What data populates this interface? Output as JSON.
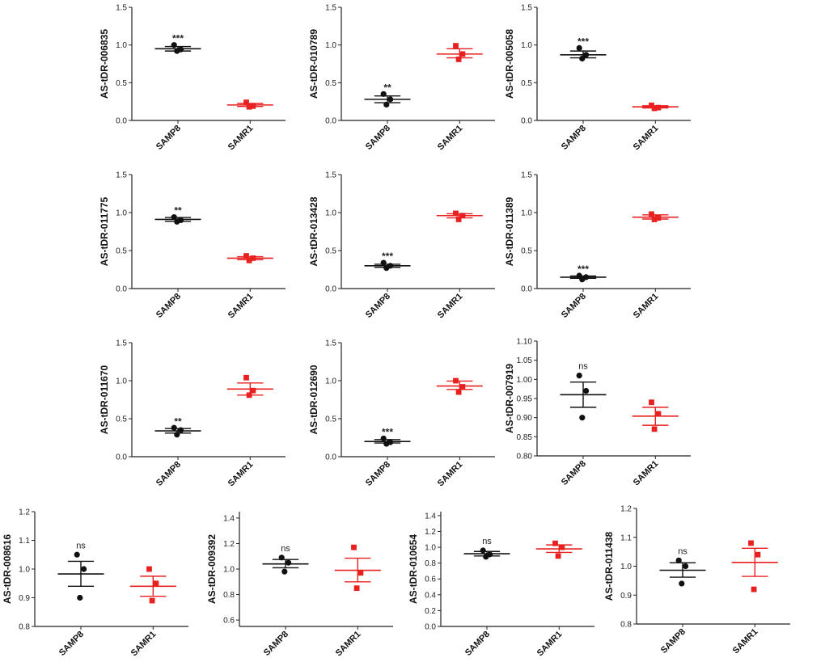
{
  "colors": {
    "SAMP8": "#111111",
    "SAMR1": "#e82020",
    "axis": "#222222"
  },
  "chart_data": [
    {
      "type": "scatter",
      "ylabel": "AS-tDR-006835",
      "categories": [
        "SAMP8",
        "SAMR1"
      ],
      "ylim": [
        0,
        1.5
      ],
      "yticks": [
        "0.0",
        "0.5",
        "1.0",
        "1.5"
      ],
      "significance": "***",
      "series": [
        {
          "name": "SAMP8",
          "points": [
            1.0,
            0.94,
            0.92
          ],
          "mean": 0.95,
          "sem_low": 0.92,
          "sem_high": 0.98
        },
        {
          "name": "SAMR1",
          "points": [
            0.24,
            0.19,
            0.18
          ],
          "mean": 0.205,
          "sem_low": 0.185,
          "sem_high": 0.225
        }
      ]
    },
    {
      "type": "scatter",
      "ylabel": "AS-tDR-010789",
      "categories": [
        "SAMP8",
        "SAMR1"
      ],
      "ylim": [
        0,
        1.5
      ],
      "yticks": [
        "0.0",
        "0.5",
        "1.0",
        "1.5"
      ],
      "significance": "**",
      "series": [
        {
          "name": "SAMP8",
          "points": [
            0.35,
            0.28,
            0.21
          ],
          "mean": 0.28,
          "sem_low": 0.235,
          "sem_high": 0.325
        },
        {
          "name": "SAMR1",
          "points": [
            0.99,
            0.88,
            0.81
          ],
          "mean": 0.88,
          "sem_low": 0.83,
          "sem_high": 0.95
        }
      ]
    },
    {
      "type": "scatter",
      "ylabel": "AS-tDR-005058",
      "categories": [
        "SAMP8",
        "SAMR1"
      ],
      "ylim": [
        0,
        1.5
      ],
      "yticks": [
        "0.0",
        "0.5",
        "1.0",
        "1.5"
      ],
      "significance": "***",
      "series": [
        {
          "name": "SAMP8",
          "points": [
            0.96,
            0.87,
            0.82
          ],
          "mean": 0.87,
          "sem_low": 0.83,
          "sem_high": 0.92
        },
        {
          "name": "SAMR1",
          "points": [
            0.2,
            0.17,
            0.16
          ],
          "mean": 0.18,
          "sem_low": 0.165,
          "sem_high": 0.195
        }
      ]
    },
    {
      "type": "scatter",
      "ylabel": "AS-tDR-011775",
      "categories": [
        "SAMP8",
        "SAMR1"
      ],
      "ylim": [
        0,
        1.5
      ],
      "yticks": [
        "0.0",
        "0.5",
        "1.0",
        "1.5"
      ],
      "significance": "**",
      "series": [
        {
          "name": "SAMP8",
          "points": [
            0.94,
            0.9,
            0.88
          ],
          "mean": 0.91,
          "sem_low": 0.885,
          "sem_high": 0.935
        },
        {
          "name": "SAMR1",
          "points": [
            0.43,
            0.4,
            0.37
          ],
          "mean": 0.4,
          "sem_low": 0.38,
          "sem_high": 0.42
        }
      ]
    },
    {
      "type": "scatter",
      "ylabel": "AS-tDR-013428",
      "categories": [
        "SAMP8",
        "SAMR1"
      ],
      "ylim": [
        0,
        1.5
      ],
      "yticks": [
        "0.0",
        "0.5",
        "1.0",
        "1.5"
      ],
      "significance": "***",
      "series": [
        {
          "name": "SAMP8",
          "points": [
            0.34,
            0.3,
            0.27
          ],
          "mean": 0.3,
          "sem_low": 0.28,
          "sem_high": 0.32
        },
        {
          "name": "SAMR1",
          "points": [
            0.99,
            0.96,
            0.91
          ],
          "mean": 0.96,
          "sem_low": 0.93,
          "sem_high": 0.985
        }
      ]
    },
    {
      "type": "scatter",
      "ylabel": "AS-tDR-011389",
      "categories": [
        "SAMP8",
        "SAMR1"
      ],
      "ylim": [
        0,
        1.5
      ],
      "yticks": [
        "0.0",
        "0.5",
        "1.0",
        "1.5"
      ],
      "significance": "***",
      "series": [
        {
          "name": "SAMP8",
          "points": [
            0.17,
            0.15,
            0.12
          ],
          "mean": 0.15,
          "sem_low": 0.135,
          "sem_high": 0.165
        },
        {
          "name": "SAMR1",
          "points": [
            0.98,
            0.93,
            0.91
          ],
          "mean": 0.94,
          "sem_low": 0.915,
          "sem_high": 0.97
        }
      ]
    },
    {
      "type": "scatter",
      "ylabel": "AS-tDR-011670",
      "categories": [
        "SAMP8",
        "SAMR1"
      ],
      "ylim": [
        0,
        1.5
      ],
      "yticks": [
        "0.0",
        "0.5",
        "1.0",
        "1.5"
      ],
      "significance": "**",
      "series": [
        {
          "name": "SAMP8",
          "points": [
            0.38,
            0.35,
            0.29
          ],
          "mean": 0.34,
          "sem_low": 0.31,
          "sem_high": 0.37
        },
        {
          "name": "SAMR1",
          "points": [
            1.04,
            0.87,
            0.81
          ],
          "mean": 0.89,
          "sem_low": 0.81,
          "sem_high": 0.97
        }
      ]
    },
    {
      "type": "scatter",
      "ylabel": "AS-tDR-012690",
      "categories": [
        "SAMP8",
        "SAMR1"
      ],
      "ylim": [
        0,
        1.5
      ],
      "yticks": [
        "0.0",
        "0.5",
        "1.0",
        "1.5"
      ],
      "significance": "***",
      "series": [
        {
          "name": "SAMP8",
          "points": [
            0.24,
            0.19,
            0.17
          ],
          "mean": 0.2,
          "sem_low": 0.18,
          "sem_high": 0.225
        },
        {
          "name": "SAMR1",
          "points": [
            1.0,
            0.92,
            0.85
          ],
          "mean": 0.93,
          "sem_low": 0.885,
          "sem_high": 0.995
        }
      ]
    },
    {
      "type": "scatter",
      "ylabel": "AS-tDR-007919",
      "categories": [
        "SAMP8",
        "SAMR1"
      ],
      "ylim": [
        0.8,
        1.1
      ],
      "yticks": [
        "0.80",
        "0.85",
        "0.90",
        "0.95",
        "1.00",
        "1.05",
        "1.10"
      ],
      "significance": "ns",
      "series": [
        {
          "name": "SAMP8",
          "points": [
            1.01,
            0.97,
            0.9
          ],
          "mean": 0.96,
          "sem_low": 0.927,
          "sem_high": 0.993
        },
        {
          "name": "SAMR1",
          "points": [
            0.94,
            0.91,
            0.87
          ],
          "mean": 0.904,
          "sem_low": 0.88,
          "sem_high": 0.927
        }
      ]
    },
    {
      "type": "scatter",
      "ylabel": "AS-tDR-008616",
      "categories": [
        "SAMP8",
        "SAMR1"
      ],
      "ylim": [
        0.8,
        1.2
      ],
      "yticks": [
        "0.8",
        "0.9",
        "1.0",
        "1.1",
        "1.2"
      ],
      "significance": "ns",
      "series": [
        {
          "name": "SAMP8",
          "points": [
            1.05,
            1.0,
            0.9
          ],
          "mean": 0.983,
          "sem_low": 0.94,
          "sem_high": 1.027
        },
        {
          "name": "SAMR1",
          "points": [
            1.0,
            0.95,
            0.89
          ],
          "mean": 0.94,
          "sem_low": 0.905,
          "sem_high": 0.975
        }
      ]
    },
    {
      "type": "scatter",
      "ylabel": "AS-tDR-009392",
      "categories": [
        "SAMP8",
        "SAMR1"
      ],
      "ylim": [
        0.55,
        1.45
      ],
      "yticks": [
        "0.6",
        "0.8",
        "1.0",
        "1.2",
        "1.4"
      ],
      "significance": "ns",
      "series": [
        {
          "name": "SAMP8",
          "points": [
            1.09,
            1.05,
            0.98
          ],
          "mean": 1.04,
          "sem_low": 1.01,
          "sem_high": 1.075
        },
        {
          "name": "SAMR1",
          "points": [
            1.17,
            0.97,
            0.85
          ],
          "mean": 0.99,
          "sem_low": 0.9,
          "sem_high": 1.085
        }
      ]
    },
    {
      "type": "scatter",
      "ylabel": "AS-tDR-010654",
      "categories": [
        "SAMP8",
        "SAMR1"
      ],
      "ylim": [
        0,
        1.45
      ],
      "yticks": [
        "0.0",
        "0.2",
        "0.4",
        "0.6",
        "0.8",
        "1.0",
        "1.2",
        "1.4"
      ],
      "significance": "ns",
      "series": [
        {
          "name": "SAMP8",
          "points": [
            0.96,
            0.91,
            0.88
          ],
          "mean": 0.918,
          "sem_low": 0.89,
          "sem_high": 0.947
        },
        {
          "name": "SAMR1",
          "points": [
            1.05,
            1.0,
            0.89
          ],
          "mean": 0.98,
          "sem_low": 0.935,
          "sem_high": 1.03
        }
      ]
    },
    {
      "type": "scatter",
      "ylabel": "AS-tDR-011438",
      "categories": [
        "SAMP8",
        "SAMR1"
      ],
      "ylim": [
        0.8,
        1.2
      ],
      "yticks": [
        "0.8",
        "0.9",
        "1.0",
        "1.1",
        "1.2"
      ],
      "significance": "ns",
      "series": [
        {
          "name": "SAMP8",
          "points": [
            1.02,
            1.0,
            0.94
          ],
          "mean": 0.986,
          "sem_low": 0.962,
          "sem_high": 1.012
        },
        {
          "name": "SAMR1",
          "points": [
            1.08,
            1.04,
            0.92
          ],
          "mean": 1.013,
          "sem_low": 0.965,
          "sem_high": 1.062
        }
      ]
    }
  ]
}
